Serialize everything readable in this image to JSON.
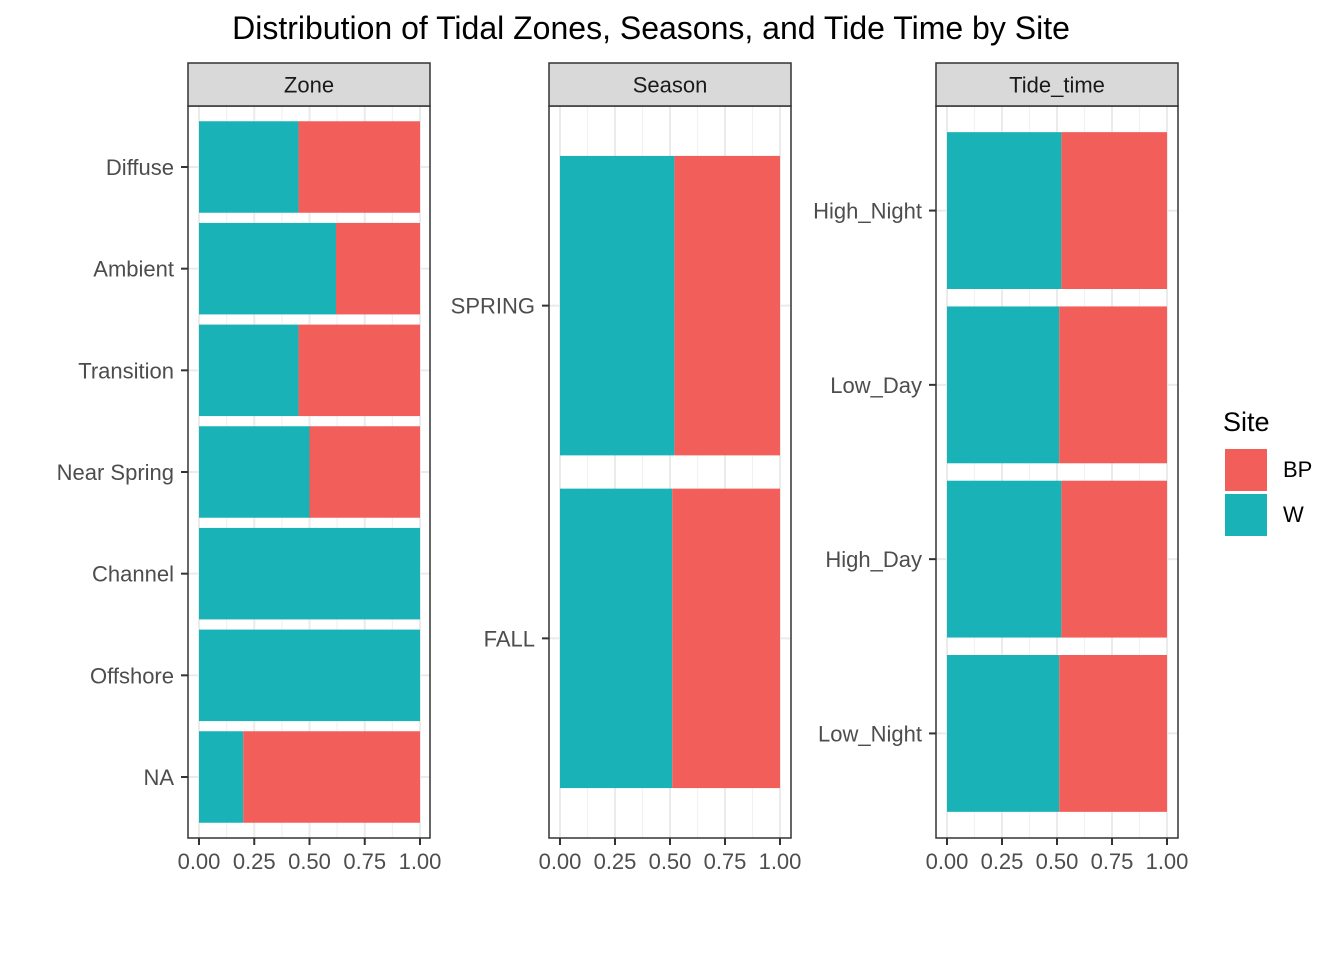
{
  "chart_data": {
    "type": "bar",
    "orientation": "horizontal",
    "stacked": "fill",
    "title": "Distribution of Tidal Zones, Seasons, and Tide Time by Site",
    "xlabel": "",
    "ylabel": "",
    "xlim": [
      0,
      1
    ],
    "x_ticks": [
      "0.00",
      "0.25",
      "0.50",
      "0.75",
      "1.00"
    ],
    "grid": true,
    "legend": {
      "title": "Site",
      "position": "right",
      "entries": [
        {
          "name": "BP",
          "color": "#F8766D"
        },
        {
          "name": "W",
          "color": "#00BFC4"
        }
      ]
    },
    "colors": {
      "BP": "#F25E5A",
      "W": "#19B3B7"
    },
    "panels": [
      {
        "strip": "Zone",
        "categories": [
          "Diffuse",
          "Ambient",
          "Transition",
          "Near Spring",
          "Channel",
          "Offshore",
          "NA"
        ],
        "series": [
          {
            "name": "W",
            "values": [
              0.45,
              0.62,
              0.45,
              0.5,
              1.0,
              1.0,
              0.2
            ]
          },
          {
            "name": "BP",
            "values": [
              0.55,
              0.38,
              0.55,
              0.5,
              0.0,
              0.0,
              0.8
            ]
          }
        ]
      },
      {
        "strip": "Season",
        "categories": [
          "SPRING",
          "FALL"
        ],
        "series": [
          {
            "name": "W",
            "values": [
              0.52,
              0.51
            ]
          },
          {
            "name": "BP",
            "values": [
              0.48,
              0.49
            ]
          }
        ]
      },
      {
        "strip": "Tide_time",
        "categories": [
          "High_Night",
          "Low_Day",
          "High_Day",
          "Low_Night"
        ],
        "series": [
          {
            "name": "W",
            "values": [
              0.52,
              0.51,
              0.52,
              0.51
            ]
          },
          {
            "name": "BP",
            "values": [
              0.48,
              0.49,
              0.48,
              0.49
            ]
          }
        ]
      }
    ]
  }
}
